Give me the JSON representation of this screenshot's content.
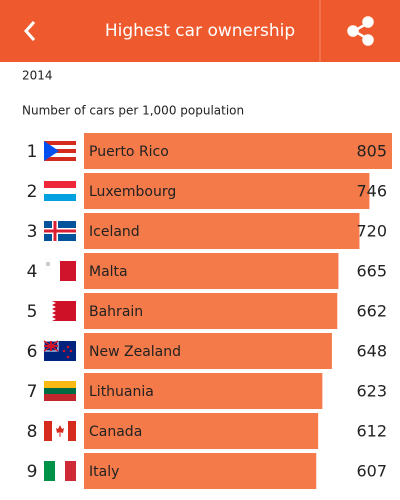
{
  "header": {
    "title": "Highest car ownership"
  },
  "chart_data": {
    "type": "bar",
    "subtitle": "2014",
    "title": "Number of cars per 1,000 population",
    "ranks": [
      1,
      2,
      3,
      4,
      5,
      6,
      7,
      8,
      9
    ],
    "categories": [
      "Puerto Rico",
      "Luxembourg",
      "Iceland",
      "Malta",
      "Bahrain",
      "New Zealand",
      "Lithuania",
      "Canada",
      "Italy"
    ],
    "values": [
      805,
      746,
      720,
      665,
      662,
      648,
      623,
      612,
      607
    ],
    "color": "#f47a4a"
  }
}
